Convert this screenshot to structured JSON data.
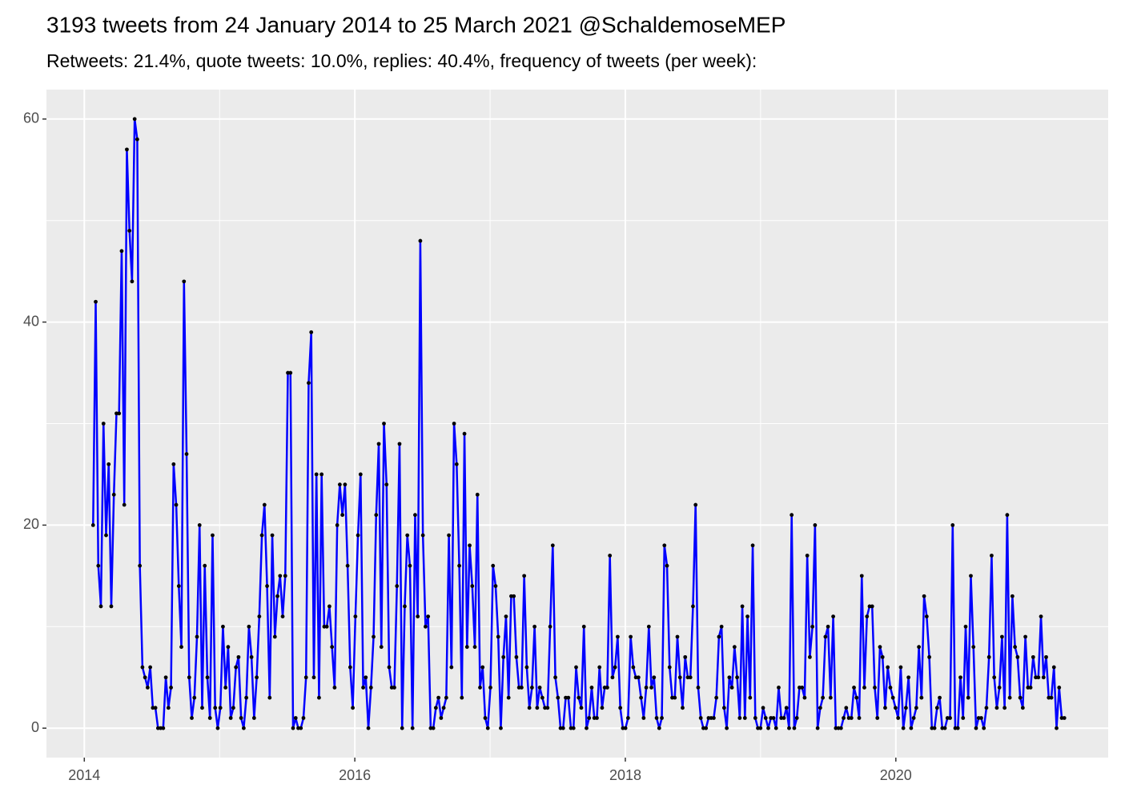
{
  "chart_data": {
    "type": "line",
    "title": "3193 tweets from 24 January 2014 to 25 March 2021 @SchaldemoseMEP",
    "subtitle": "Retweets: 21.4%, quote tweets: 10.0%, replies: 40.4%, frequency of tweets (per week):",
    "color": "#0000ff",
    "marker_color": "#000000",
    "grid": true,
    "xlim": [
      2013.72,
      2021.57
    ],
    "xticks": [
      2014,
      2016,
      2018,
      2020
    ],
    "ylim": [
      -2.9,
      62.9
    ],
    "yticks": [
      0,
      20,
      40,
      60
    ],
    "x": [
      2014.065,
      2014.0842,
      2014.1034,
      2014.1226,
      2014.1418,
      2014.161,
      2014.1802,
      2014.1994,
      2014.2186,
      2014.2378,
      2014.257,
      2014.2762,
      2014.2954,
      2014.3146,
      2014.3338,
      2014.353,
      2014.3722,
      2014.3914,
      2014.4106,
      2014.4298,
      2014.449,
      2014.4682,
      2014.4874,
      2014.5066,
      2014.5258,
      2014.545,
      2014.5642,
      2014.5834,
      2014.6026,
      2014.6218,
      2014.641,
      2014.6602,
      2014.6794,
      2014.6986,
      2014.7178,
      2014.737,
      2014.7562,
      2014.7754,
      2014.7946,
      2014.8138,
      2014.833,
      2014.8522,
      2014.8714,
      2014.8906,
      2014.9098,
      2014.929,
      2014.9482,
      2014.9674,
      2014.9866,
      2015.0058,
      2015.025,
      2015.0442,
      2015.0634,
      2015.0826,
      2015.1018,
      2015.121,
      2015.1402,
      2015.1594,
      2015.1786,
      2015.1978,
      2015.217,
      2015.2362,
      2015.2554,
      2015.2746,
      2015.2938,
      2015.313,
      2015.3322,
      2015.3514,
      2015.3706,
      2015.3898,
      2015.409,
      2015.4282,
      2015.4474,
      2015.4666,
      2015.4858,
      2015.505,
      2015.5242,
      2015.5434,
      2015.5626,
      2015.5818,
      2015.601,
      2015.6202,
      2015.6394,
      2015.6586,
      2015.6778,
      2015.697,
      2015.7162,
      2015.7354,
      2015.7546,
      2015.7738,
      2015.793,
      2015.8122,
      2015.8314,
      2015.8506,
      2015.8698,
      2015.889,
      2015.9082,
      2015.9274,
      2015.9466,
      2015.9658,
      2015.985,
      2016.0042,
      2016.0234,
      2016.0426,
      2016.0618,
      2016.081,
      2016.1002,
      2016.1194,
      2016.1386,
      2016.1578,
      2016.177,
      2016.1962,
      2016.2154,
      2016.2346,
      2016.2538,
      2016.273,
      2016.2922,
      2016.3114,
      2016.3306,
      2016.3498,
      2016.369,
      2016.3882,
      2016.4074,
      2016.4266,
      2016.4458,
      2016.465,
      2016.4842,
      2016.5034,
      2016.5226,
      2016.5418,
      2016.561,
      2016.5802,
      2016.5994,
      2016.6186,
      2016.6378,
      2016.657,
      2016.6762,
      2016.6954,
      2016.7146,
      2016.7338,
      2016.753,
      2016.7722,
      2016.7914,
      2016.8106,
      2016.8298,
      2016.849,
      2016.8682,
      2016.8874,
      2016.9066,
      2016.9258,
      2016.945,
      2016.9642,
      2016.9834,
      2017.0026,
      2017.0218,
      2017.041,
      2017.0602,
      2017.0794,
      2017.0986,
      2017.1178,
      2017.137,
      2017.1562,
      2017.1754,
      2017.1946,
      2017.2138,
      2017.233,
      2017.2522,
      2017.2714,
      2017.2906,
      2017.3098,
      2017.329,
      2017.3482,
      2017.3674,
      2017.3866,
      2017.4058,
      2017.425,
      2017.4442,
      2017.4634,
      2017.4826,
      2017.5018,
      2017.521,
      2017.5402,
      2017.5594,
      2017.5786,
      2017.5978,
      2017.617,
      2017.6362,
      2017.6554,
      2017.6746,
      2017.6938,
      2017.713,
      2017.7322,
      2017.7514,
      2017.7706,
      2017.7898,
      2017.809,
      2017.8282,
      2017.8474,
      2017.8666,
      2017.8858,
      2017.905,
      2017.9242,
      2017.9434,
      2017.9626,
      2017.9818,
      2018.001,
      2018.0202,
      2018.0394,
      2018.0586,
      2018.0778,
      2018.097,
      2018.1162,
      2018.1354,
      2018.1546,
      2018.1738,
      2018.193,
      2018.2122,
      2018.2314,
      2018.2506,
      2018.2698,
      2018.289,
      2018.3082,
      2018.3274,
      2018.3466,
      2018.3658,
      2018.385,
      2018.4042,
      2018.4234,
      2018.4426,
      2018.4618,
      2018.481,
      2018.5002,
      2018.5194,
      2018.5386,
      2018.5578,
      2018.577,
      2018.5962,
      2018.6154,
      2018.6346,
      2018.6538,
      2018.673,
      2018.6922,
      2018.7114,
      2018.7306,
      2018.7498,
      2018.769,
      2018.7882,
      2018.8074,
      2018.8266,
      2018.8458,
      2018.865,
      2018.8842,
      2018.9034,
      2018.9226,
      2018.9418,
      2018.961,
      2018.9802,
      2018.9994,
      2019.0186,
      2019.0378,
      2019.057,
      2019.0762,
      2019.0954,
      2019.1146,
      2019.1338,
      2019.153,
      2019.1722,
      2019.1914,
      2019.2106,
      2019.2298,
      2019.249,
      2019.2682,
      2019.2874,
      2019.3066,
      2019.3258,
      2019.345,
      2019.3642,
      2019.3834,
      2019.4026,
      2019.4218,
      2019.441,
      2019.4602,
      2019.4794,
      2019.4986,
      2019.5178,
      2019.537,
      2019.5562,
      2019.5754,
      2019.5946,
      2019.6138,
      2019.633,
      2019.6522,
      2019.6714,
      2019.6906,
      2019.7098,
      2019.729,
      2019.7482,
      2019.7674,
      2019.7866,
      2019.8058,
      2019.825,
      2019.8442,
      2019.8634,
      2019.8826,
      2019.9018,
      2019.921,
      2019.9402,
      2019.9594,
      2019.9786,
      2019.9978,
      2020.017,
      2020.0362,
      2020.0554,
      2020.0746,
      2020.0938,
      2020.113,
      2020.1322,
      2020.1514,
      2020.1706,
      2020.1898,
      2020.209,
      2020.2282,
      2020.2474,
      2020.2666,
      2020.2858,
      2020.305,
      2020.3242,
      2020.3434,
      2020.3626,
      2020.3818,
      2020.401,
      2020.4202,
      2020.4394,
      2020.4586,
      2020.4778,
      2020.497,
      2020.5162,
      2020.5354,
      2020.5546,
      2020.5738,
      2020.593,
      2020.6122,
      2020.6314,
      2020.6506,
      2020.6698,
      2020.689,
      2020.7082,
      2020.7274,
      2020.7466,
      2020.7658,
      2020.785,
      2020.8042,
      2020.8234,
      2020.8426,
      2020.8618,
      2020.881,
      2020.9002,
      2020.9194,
      2020.9386,
      2020.9578,
      2020.977,
      2020.9962,
      2021.0154,
      2021.0346,
      2021.0538,
      2021.073,
      2021.0922,
      2021.1114,
      2021.1306,
      2021.1498,
      2021.169,
      2021.1882,
      2021.2074,
      2021.2266,
      2021.2458
    ],
    "values": [
      20,
      42,
      16,
      12,
      30,
      19,
      26,
      12,
      23,
      31,
      31,
      47,
      22,
      57,
      49,
      44,
      60,
      58,
      16,
      6,
      5,
      4,
      6,
      2,
      2,
      0,
      0,
      0,
      5,
      2,
      4,
      26,
      22,
      14,
      8,
      44,
      27,
      5,
      1,
      3,
      9,
      20,
      2,
      16,
      5,
      1,
      19,
      2,
      0,
      2,
      10,
      4,
      8,
      1,
      2,
      6,
      7,
      1,
      0,
      3,
      10,
      7,
      1,
      5,
      11,
      19,
      22,
      14,
      3,
      19,
      9,
      13,
      15,
      11,
      15,
      35,
      35,
      0,
      1,
      0,
      0,
      1,
      5,
      34,
      39,
      5,
      25,
      3,
      25,
      10,
      10,
      12,
      8,
      4,
      20,
      24,
      21,
      24,
      16,
      6,
      2,
      11,
      19,
      25,
      4,
      5,
      0,
      4,
      9,
      21,
      28,
      8,
      30,
      24,
      6,
      4,
      4,
      14,
      28,
      0,
      12,
      19,
      16,
      0,
      21,
      11,
      48,
      19,
      10,
      11,
      0,
      0,
      2,
      3,
      1,
      2,
      3,
      19,
      6,
      30,
      26,
      16,
      3,
      29,
      8,
      18,
      14,
      8,
      23,
      4,
      6,
      1,
      0,
      4,
      16,
      14,
      9,
      0,
      7,
      11,
      3,
      13,
      13,
      7,
      4,
      4,
      15,
      6,
      2,
      4,
      10,
      2,
      4,
      3,
      2,
      2,
      10,
      18,
      5,
      3,
      0,
      0,
      3,
      3,
      0,
      0,
      6,
      3,
      2,
      10,
      0,
      1,
      4,
      1,
      1,
      6,
      2,
      4,
      4,
      17,
      5,
      6,
      9,
      2,
      0,
      0,
      1,
      9,
      6,
      5,
      5,
      3,
      1,
      4,
      10,
      4,
      5,
      1,
      0,
      1,
      18,
      16,
      6,
      3,
      3,
      9,
      5,
      2,
      7,
      5,
      5,
      12,
      22,
      4,
      1,
      0,
      0,
      1,
      1,
      1,
      3,
      9,
      10,
      2,
      0,
      5,
      4,
      8,
      5,
      1,
      12,
      1,
      11,
      3,
      18,
      1,
      0,
      0,
      2,
      1,
      0,
      1,
      1,
      0,
      4,
      1,
      1,
      2,
      0,
      21,
      0,
      1,
      4,
      4,
      3,
      17,
      7,
      10,
      20,
      0,
      2,
      3,
      9,
      10,
      3,
      11,
      0,
      0,
      0,
      1,
      2,
      1,
      1,
      4,
      3,
      1,
      15,
      4,
      11,
      12,
      12,
      4,
      1,
      8,
      7,
      2,
      6,
      4,
      3,
      2,
      1,
      6,
      0,
      2,
      5,
      0,
      1,
      2,
      8,
      3,
      13,
      11,
      7,
      0,
      0,
      2,
      3,
      0,
      0,
      1,
      1,
      20,
      0,
      0,
      5,
      1,
      10,
      3,
      15,
      8,
      0,
      1,
      1,
      0,
      2,
      7,
      17,
      5,
      2,
      4,
      9,
      2,
      21,
      3,
      13,
      8,
      7,
      3,
      2,
      9,
      4,
      4,
      7,
      5,
      5,
      11,
      5,
      7,
      3,
      3,
      6,
      0,
      4,
      1,
      1
    ]
  }
}
